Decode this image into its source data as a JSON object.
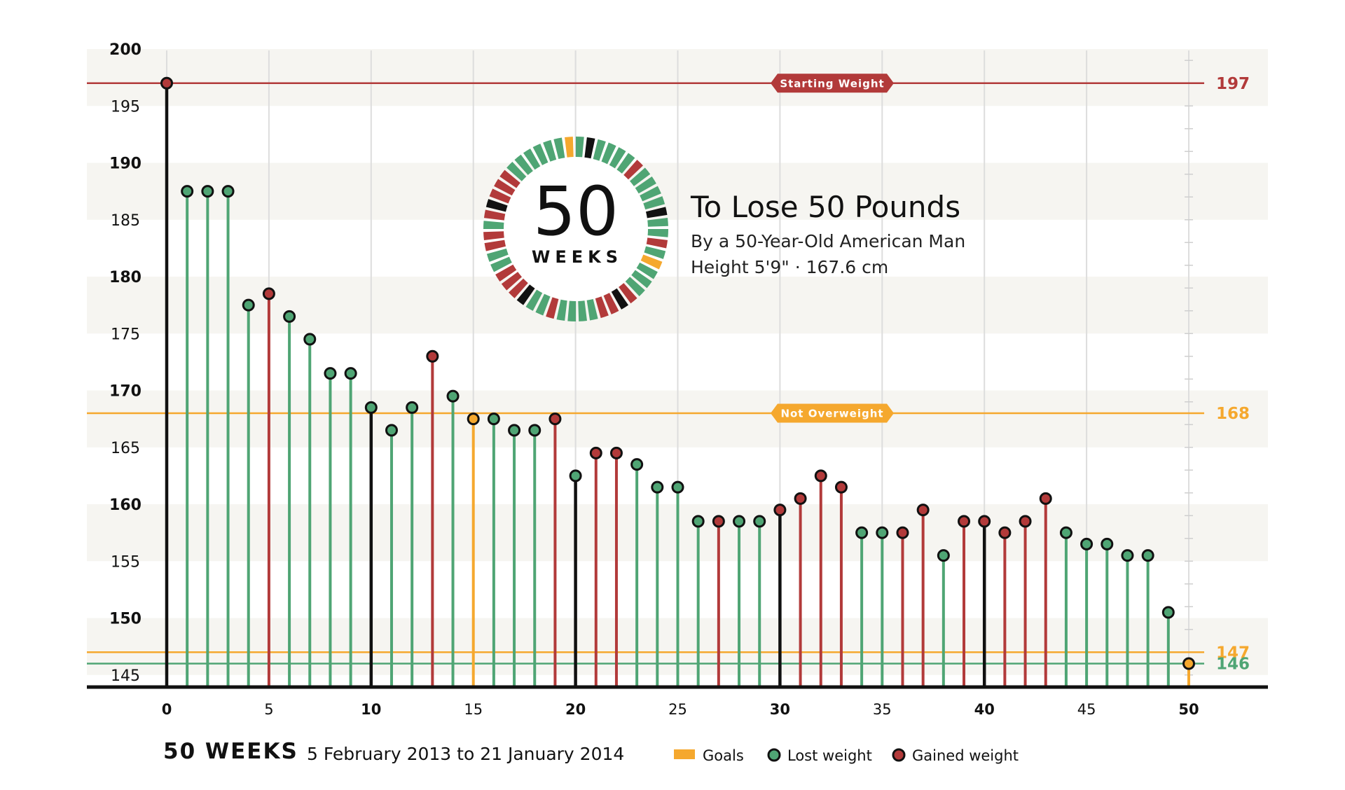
{
  "colors": {
    "lost": "#4fa574",
    "gained": "#b23a3a",
    "goal": "#f5a82e",
    "milestone": "#111111",
    "band": "#f6f5f1",
    "grid": "#dddddd"
  },
  "title": "To Lose 50 Pounds",
  "subtitle_line1": "By a 50-Year-Old American Man",
  "subtitle_line2": "Height 5'9\"  · 167.6 cm",
  "dial": {
    "number": "50",
    "label": "WEEKS"
  },
  "footer": {
    "weeks_label": "50 WEEKS",
    "date_range": "5 February 2013 to 21 January 2014"
  },
  "legend": [
    {
      "label": "Goals",
      "marker": "bar",
      "color": "#f5a82e"
    },
    {
      "label": "Lost weight",
      "marker": "dot",
      "color": "#4fa574"
    },
    {
      "label": "Gained weight",
      "marker": "dot",
      "color": "#b23a3a"
    }
  ],
  "chart_data": {
    "type": "lollipop",
    "x_ticks": [
      0,
      5,
      10,
      15,
      20,
      25,
      30,
      35,
      40,
      45,
      50
    ],
    "x_bold_ticks": [
      0,
      10,
      20,
      30,
      40,
      50
    ],
    "y_ticks": [
      145,
      150,
      155,
      160,
      165,
      170,
      175,
      180,
      185,
      190,
      195,
      200
    ],
    "y_bold_ticks": [
      150,
      160,
      170,
      180,
      190,
      200
    ],
    "xlim": [
      0,
      50
    ],
    "ylim": [
      144,
      200
    ],
    "x": [
      0,
      1,
      2,
      3,
      4,
      5,
      6,
      7,
      8,
      9,
      10,
      11,
      12,
      13,
      14,
      15,
      16,
      17,
      18,
      19,
      20,
      21,
      22,
      23,
      24,
      25,
      26,
      27,
      28,
      29,
      30,
      31,
      32,
      33,
      34,
      35,
      36,
      37,
      38,
      39,
      40,
      41,
      42,
      43,
      44,
      45,
      46,
      47,
      48,
      49,
      50
    ],
    "weights": [
      197,
      187.5,
      187.5,
      187.5,
      177.5,
      178.5,
      176.5,
      174.5,
      171.5,
      171.5,
      168.5,
      166.5,
      168.5,
      173,
      169.5,
      167.5,
      167.5,
      166.5,
      166.5,
      167.5,
      162.5,
      164.5,
      164.5,
      163.5,
      161.5,
      161.5,
      158.5,
      158.5,
      158.5,
      158.5,
      159.5,
      160.5,
      162.5,
      161.5,
      157.5,
      157.5,
      157.5,
      159.5,
      155.5,
      158.5,
      158.5,
      157.5,
      158.5,
      160.5,
      157.5,
      156.5,
      156.5,
      155.5,
      155.5,
      150.5,
      146
    ],
    "status": [
      "start",
      "lost",
      "lost",
      "lost",
      "lost",
      "gained",
      "lost",
      "lost",
      "lost",
      "lost",
      "milestone",
      "lost",
      "lost",
      "gained",
      "lost",
      "goal",
      "lost",
      "lost",
      "lost",
      "gained",
      "milestone",
      "gained",
      "gained",
      "lost",
      "lost",
      "lost",
      "lost",
      "gained",
      "lost",
      "lost",
      "milestone",
      "gained",
      "gained",
      "gained",
      "lost",
      "lost",
      "gained",
      "gained",
      "lost",
      "gained",
      "milestone",
      "gained",
      "gained",
      "gained",
      "lost",
      "lost",
      "lost",
      "lost",
      "lost",
      "lost",
      "goal"
    ],
    "reference_lines": [
      {
        "value": 197,
        "label": "197",
        "badge": "Starting Weight",
        "color": "#b23a3a"
      },
      {
        "value": 168,
        "label": "168",
        "badge": "Not Overweight",
        "color": "#f5a82e"
      },
      {
        "value": 147,
        "label": "147",
        "badge": "",
        "color": "#f5a82e"
      },
      {
        "value": 146,
        "label": "146",
        "badge": "",
        "color": "#4fa574"
      }
    ]
  }
}
